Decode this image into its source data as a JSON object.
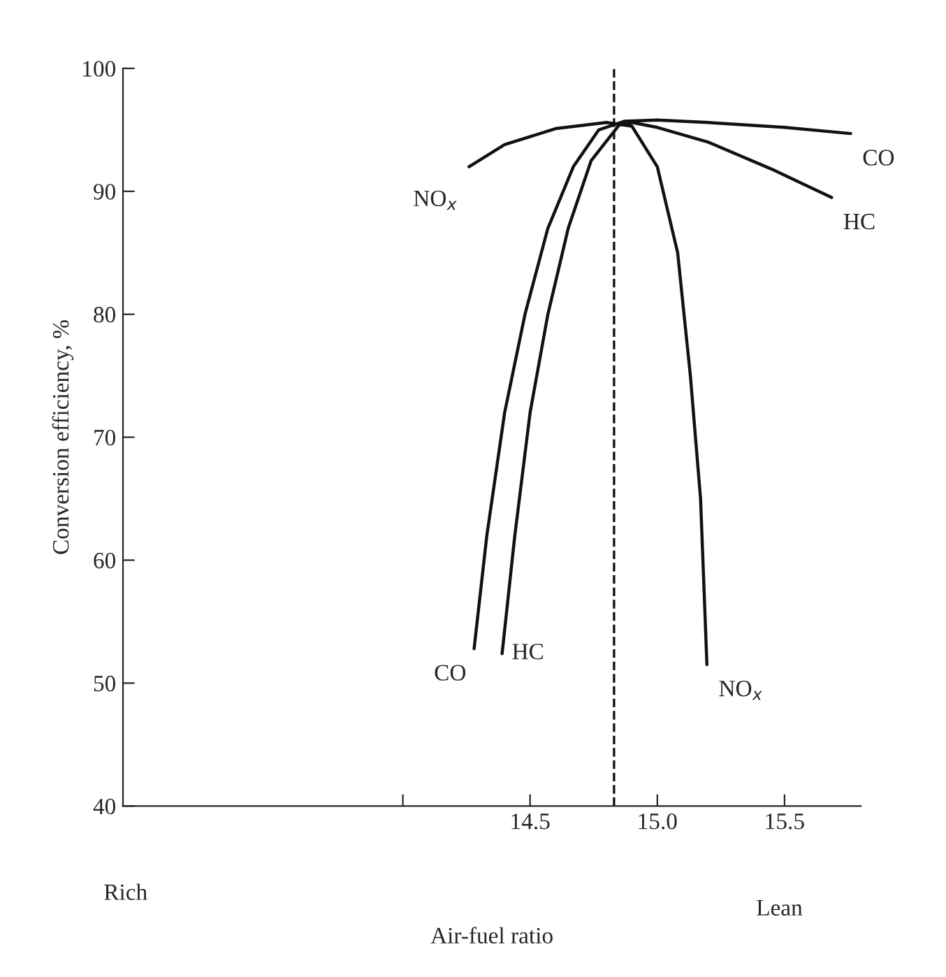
{
  "chart_data": {
    "type": "line",
    "xlabel": "Air-fuel ratio",
    "ylabel": "Conversion efficiency, %",
    "xlim": [
      12.9,
      15.8
    ],
    "xticks": [
      {
        "value": 14.0,
        "label": null
      },
      {
        "value": 14.5,
        "label": "14.5"
      },
      {
        "value": 15.0,
        "label": "15.0"
      },
      {
        "value": 15.5,
        "label": "15.5"
      }
    ],
    "ylim": [
      40,
      100
    ],
    "yticks": [
      40,
      50,
      60,
      70,
      80,
      90,
      100
    ],
    "grid": false,
    "marker": "none",
    "line_style": "solid",
    "series": [
      {
        "name": "CO",
        "color": "#111111",
        "x": [
          14.28,
          14.33,
          14.4,
          14.48,
          14.57,
          14.67,
          14.77,
          14.87,
          15.0,
          15.2,
          15.5,
          15.76
        ],
        "values": [
          52.8,
          62,
          72,
          80,
          87,
          92,
          95,
          95.7,
          95.8,
          95.6,
          95.2,
          94.7
        ]
      },
      {
        "name": "HC",
        "color": "#111111",
        "x": [
          14.39,
          14.44,
          14.5,
          14.57,
          14.65,
          14.74,
          14.85,
          14.9,
          15.0,
          15.2,
          15.45,
          15.685
        ],
        "values": [
          52.4,
          62,
          72,
          80,
          87,
          92.5,
          95.4,
          95.6,
          95.2,
          94,
          91.8,
          89.5
        ]
      },
      {
        "name": "NO$_{x}$",
        "color": "#111111",
        "x": [
          14.26,
          14.4,
          14.6,
          14.8,
          14.9,
          15.0,
          15.08,
          15.13,
          15.17,
          15.195
        ],
        "values": [
          92,
          93.8,
          95.1,
          95.6,
          95.3,
          92,
          85,
          75,
          65,
          51.5
        ]
      }
    ],
    "ref_lines": [
      {
        "axis": "x",
        "value": 14.83,
        "label": null,
        "line_style": "dashed",
        "color": "#111111"
      }
    ],
    "annotations": [
      "Rich",
      "Lean"
    ]
  }
}
